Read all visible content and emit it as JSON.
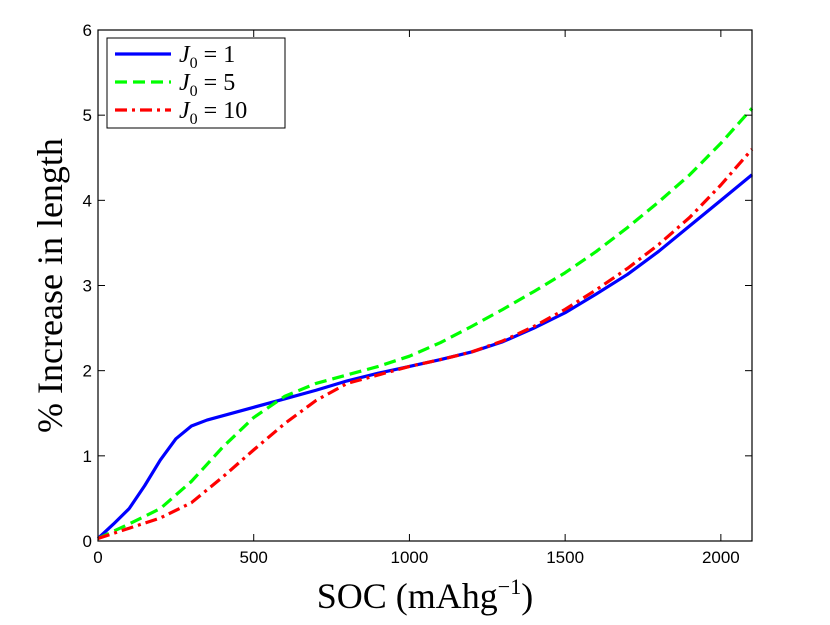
{
  "chart_data": {
    "type": "line",
    "xlabel": "SOC (mAhg",
    "xlabel_sup": "−1",
    "xlabel_end": ")",
    "ylabel": "% Increase in length",
    "xlim": [
      0,
      2100
    ],
    "ylim": [
      0,
      6
    ],
    "xticks": [
      0,
      500,
      1000,
      1500,
      2000
    ],
    "yticks": [
      0,
      1,
      2,
      3,
      4,
      5,
      6
    ],
    "grid": false,
    "legend_position": "top-left",
    "series": [
      {
        "name": "J0 = 1",
        "legend_base": "J",
        "legend_sub": "0",
        "legend_rest": " = 1",
        "color": "#0000ff",
        "dash": "solid",
        "x": [
          0,
          50,
          100,
          150,
          200,
          250,
          300,
          350,
          400,
          500,
          600,
          700,
          800,
          900,
          1000,
          1100,
          1200,
          1300,
          1400,
          1500,
          1600,
          1700,
          1800,
          1900,
          2000,
          2100
        ],
        "y": [
          0.03,
          0.2,
          0.38,
          0.65,
          0.95,
          1.2,
          1.35,
          1.42,
          1.47,
          1.57,
          1.67,
          1.77,
          1.88,
          1.97,
          2.05,
          2.13,
          2.22,
          2.34,
          2.5,
          2.68,
          2.9,
          3.13,
          3.4,
          3.7,
          4.0,
          4.3
        ]
      },
      {
        "name": "J0 = 5",
        "legend_base": "J",
        "legend_sub": "0",
        "legend_rest": " = 5",
        "color": "#00ff00",
        "dash": "dashed",
        "x": [
          0,
          100,
          200,
          300,
          400,
          500,
          600,
          700,
          800,
          900,
          1000,
          1100,
          1200,
          1300,
          1400,
          1500,
          1600,
          1700,
          1800,
          1900,
          2000,
          2100
        ],
        "y": [
          0.03,
          0.2,
          0.38,
          0.7,
          1.1,
          1.45,
          1.7,
          1.85,
          1.95,
          2.05,
          2.17,
          2.33,
          2.52,
          2.72,
          2.93,
          3.15,
          3.4,
          3.68,
          3.98,
          4.3,
          4.67,
          5.08
        ]
      },
      {
        "name": "J0 = 10",
        "legend_base": "J",
        "legend_sub": "0",
        "legend_rest": " = 10",
        "color": "#ff0000",
        "dash": "dashdot",
        "x": [
          0,
          100,
          200,
          300,
          400,
          500,
          600,
          700,
          800,
          900,
          1000,
          1100,
          1200,
          1300,
          1400,
          1500,
          1600,
          1700,
          1800,
          1900,
          2000,
          2100
        ],
        "y": [
          0.03,
          0.15,
          0.27,
          0.45,
          0.75,
          1.07,
          1.38,
          1.65,
          1.85,
          1.95,
          2.05,
          2.13,
          2.22,
          2.35,
          2.52,
          2.72,
          2.95,
          3.2,
          3.48,
          3.8,
          4.18,
          4.6
        ]
      }
    ]
  }
}
